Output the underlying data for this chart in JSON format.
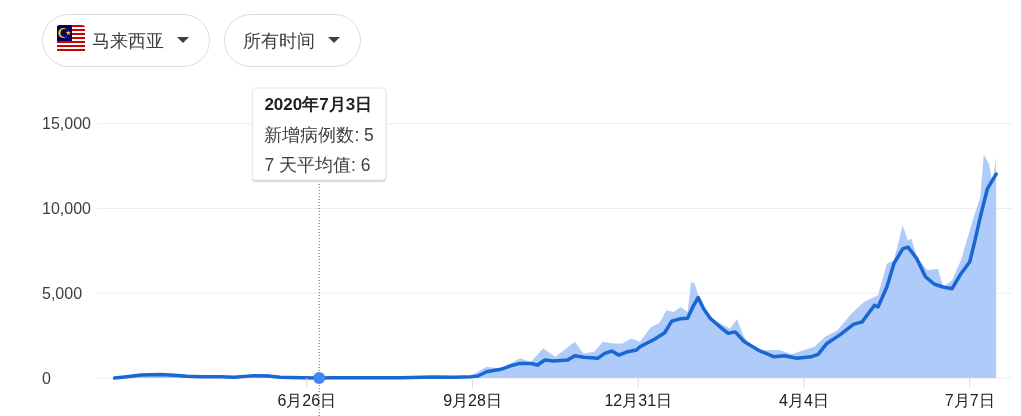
{
  "chart_data": {
    "type": "line",
    "title": "马来西亚",
    "subtitle": "所有时间",
    "xlim": [
      "2020-02-28",
      "2021-07-31"
    ],
    "xticks": [
      {
        "value": "2020-06-26",
        "label": "6月26日"
      },
      {
        "value": "2020-09-28",
        "label": "9月28日"
      },
      {
        "value": "2020-12-31",
        "label": "12月31日"
      },
      {
        "value": "2021-04-04",
        "label": "4月4日"
      },
      {
        "value": "2021-07-07",
        "label": "7月7日"
      }
    ],
    "ylim": [
      0,
      15000
    ],
    "yticks": [
      0,
      {
        "value": 5000,
        "label": "5,000"
      },
      {
        "value": 10000,
        "label": "10,000"
      },
      {
        "value": 15000,
        "label": "15,000"
      }
    ],
    "grid": "y",
    "annotations": [
      "2020年7月3日",
      "新增病例数: 5",
      "7 天平均值: 6"
    ],
    "ref_lines": [
      {
        "axis": "x",
        "value": "2020-07-03",
        "color": "#5f6368",
        "line_style": "dotted"
      }
    ],
    "series": [
      {
        "type": "area",
        "color": "#aecbfa",
        "x": [
          "2020-03-09",
          "2020-03-16",
          "2020-03-24",
          "2020-04-04",
          "2020-04-19",
          "2020-05-08",
          "2020-05-27",
          "2020-06-04",
          "2020-06-11",
          "2020-06-23",
          "2020-07-03",
          "2020-08-18",
          "2020-09-06",
          "2020-09-18",
          "2020-09-27",
          "2020-10-06",
          "2020-10-14",
          "2020-10-25",
          "2020-10-31",
          "2020-11-07",
          "2020-11-14",
          "2020-11-25",
          "2020-11-30",
          "2020-12-06",
          "2020-12-11",
          "2020-12-17",
          "2020-12-22",
          "2020-12-27",
          "2021-01-01",
          "2021-01-07",
          "2021-01-12",
          "2021-01-16",
          "2021-01-20",
          "2021-01-24",
          "2021-01-28",
          "2021-01-30",
          "2021-02-01",
          "2021-02-03",
          "2021-02-05",
          "2021-02-12",
          "2021-02-16",
          "2021-02-21",
          "2021-02-25",
          "2021-03-01",
          "2021-03-04",
          "2021-03-10",
          "2021-03-14",
          "2021-03-21",
          "2021-03-28",
          "2021-04-04",
          "2021-04-10",
          "2021-04-16",
          "2021-04-23",
          "2021-05-01",
          "2021-05-08",
          "2021-05-16",
          "2021-05-21",
          "2021-05-25",
          "2021-05-30",
          "2021-06-02",
          "2021-06-04",
          "2021-06-07",
          "2021-06-13",
          "2021-06-19",
          "2021-06-22",
          "2021-06-27",
          "2021-07-02",
          "2021-07-09",
          "2021-07-13",
          "2021-07-15",
          "2021-07-18",
          "2021-07-20",
          "2021-07-22"
        ],
        "values": [
          0,
          120,
          200,
          220,
          110,
          90,
          160,
          250,
          50,
          10,
          5,
          20,
          70,
          50,
          120,
          670,
          560,
          1160,
          950,
          1740,
          1250,
          2140,
          1450,
          1550,
          2140,
          2040,
          2040,
          2330,
          2140,
          2980,
          3250,
          4000,
          3900,
          4190,
          3900,
          5660,
          5570,
          4880,
          4290,
          3410,
          3210,
          2900,
          3470,
          2430,
          2040,
          1550,
          1650,
          1650,
          1400,
          1650,
          1840,
          2430,
          2820,
          3800,
          4490,
          4880,
          6740,
          6940,
          9000,
          8110,
          8210,
          7130,
          6350,
          6450,
          5370,
          5760,
          6940,
          9390,
          10660,
          13170,
          12620,
          11450,
          12980
        ]
      },
      {
        "color": "#1967d2",
        "x": [
          "2020-03-09",
          "2020-03-16",
          "2020-03-24",
          "2020-04-04",
          "2020-04-12",
          "2020-04-19",
          "2020-04-27",
          "2020-05-08",
          "2020-05-16",
          "2020-05-27",
          "2020-06-04",
          "2020-06-11",
          "2020-06-23",
          "2020-07-03",
          "2020-07-11",
          "2020-08-18",
          "2020-09-06",
          "2020-09-18",
          "2020-09-27",
          "2020-10-01",
          "2020-10-06",
          "2020-10-14",
          "2020-10-20",
          "2020-10-25",
          "2020-10-31",
          "2020-11-04",
          "2020-11-08",
          "2020-11-13",
          "2020-11-21",
          "2020-11-25",
          "2020-11-30",
          "2020-12-08",
          "2020-12-12",
          "2020-12-16",
          "2020-12-20",
          "2020-12-25",
          "2020-12-30",
          "2021-01-01",
          "2021-01-09",
          "2021-01-15",
          "2021-01-19",
          "2021-01-24",
          "2021-01-28",
          "2021-01-31",
          "2021-02-03",
          "2021-02-06",
          "2021-02-10",
          "2021-02-15",
          "2021-02-20",
          "2021-02-24",
          "2021-03-01",
          "2021-03-09",
          "2021-03-18",
          "2021-03-24",
          "2021-03-31",
          "2021-04-08",
          "2021-04-12",
          "2021-04-17",
          "2021-04-25",
          "2021-05-02",
          "2021-05-07",
          "2021-05-14",
          "2021-05-16",
          "2021-05-21",
          "2021-05-25",
          "2021-05-30",
          "2021-06-02",
          "2021-06-07",
          "2021-06-12",
          "2021-06-17",
          "2021-06-22",
          "2021-06-27",
          "2021-07-02",
          "2021-07-07",
          "2021-07-10",
          "2021-07-13",
          "2021-07-17",
          "2021-07-22"
        ],
        "values": [
          0,
          80,
          180,
          200,
          160,
          100,
          80,
          80,
          40,
          140,
          120,
          40,
          10,
          6,
          10,
          10,
          60,
          40,
          80,
          120,
          370,
          510,
          730,
          860,
          860,
          770,
          1060,
          1000,
          1060,
          1310,
          1220,
          1160,
          1450,
          1590,
          1350,
          1550,
          1650,
          1840,
          2270,
          2670,
          3350,
          3500,
          3520,
          4200,
          4750,
          4100,
          3500,
          3050,
          2630,
          2720,
          2150,
          1650,
          1250,
          1310,
          1160,
          1250,
          1390,
          2040,
          2590,
          3160,
          3310,
          4290,
          4190,
          5370,
          6740,
          7620,
          7720,
          7040,
          5960,
          5530,
          5370,
          5270,
          6150,
          6840,
          8110,
          9490,
          11150,
          12030
        ]
      },
      {
        "type": "scatter",
        "color": "#4285f4",
        "marker": "circle",
        "x": [
          "2020-07-03"
        ],
        "values": [
          6
        ]
      }
    ]
  }
}
